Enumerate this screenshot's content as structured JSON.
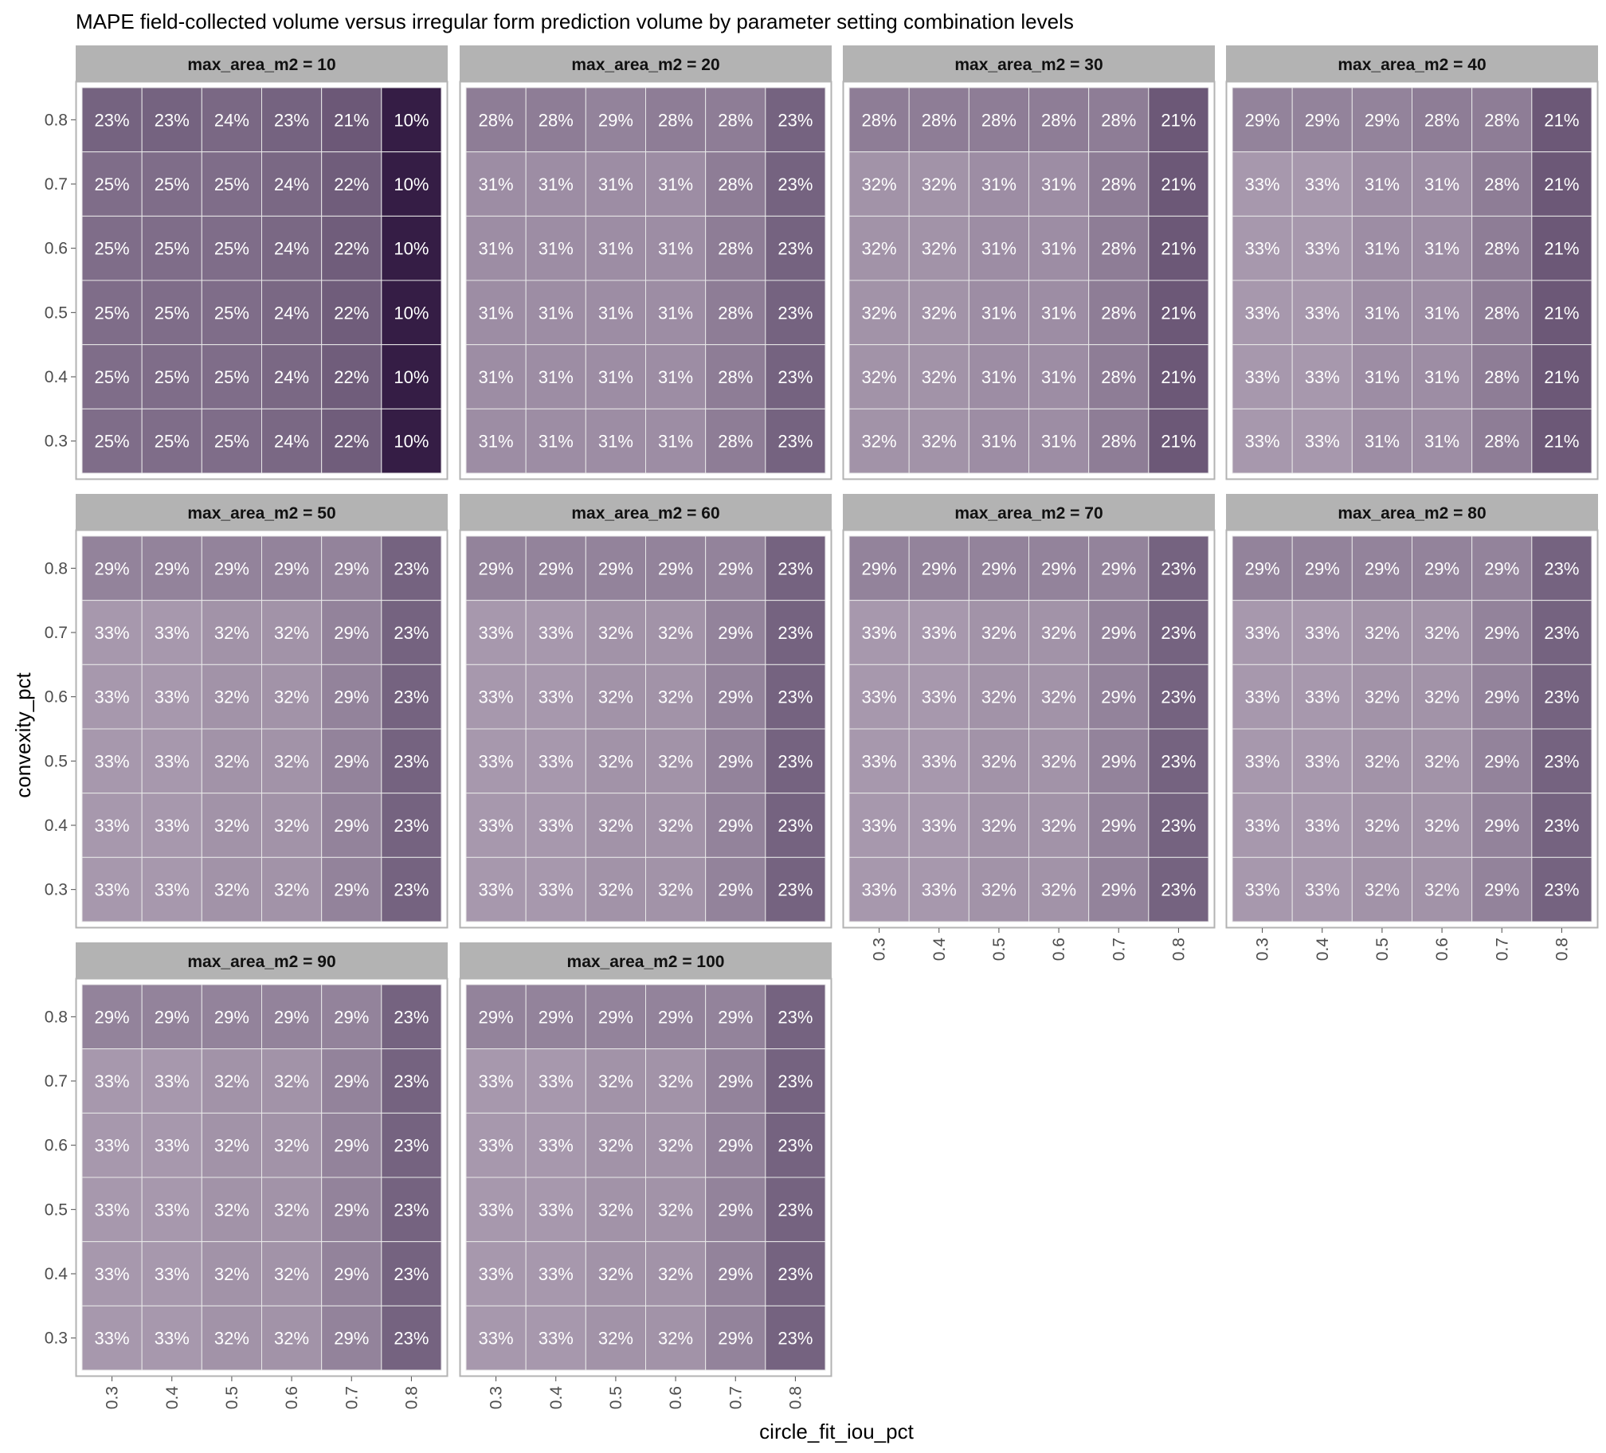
{
  "chart_data": {
    "type": "heatmap",
    "title": "MAPE field-collected volume versus irregular form prediction volume by parameter setting combination levels",
    "xlabel": "circle_fit_iou_pct",
    "ylabel": "convexity_pct",
    "x_categories": [
      "0.3",
      "0.4",
      "0.5",
      "0.6",
      "0.7",
      "0.8"
    ],
    "y_categories": [
      "0.8",
      "0.7",
      "0.6",
      "0.5",
      "0.4",
      "0.3"
    ],
    "value_format": "percent",
    "color_scale": {
      "low": "#351d45",
      "high": "#a798ad",
      "domain": [
        10,
        33
      ]
    },
    "panels": [
      {
        "label": "max_area_m2 = 10",
        "values": [
          [
            23,
            23,
            24,
            23,
            21,
            10
          ],
          [
            25,
            25,
            25,
            24,
            22,
            10
          ],
          [
            25,
            25,
            25,
            24,
            22,
            10
          ],
          [
            25,
            25,
            25,
            24,
            22,
            10
          ],
          [
            25,
            25,
            25,
            24,
            22,
            10
          ],
          [
            25,
            25,
            25,
            24,
            22,
            10
          ]
        ]
      },
      {
        "label": "max_area_m2 = 20",
        "values": [
          [
            28,
            28,
            29,
            28,
            28,
            23
          ],
          [
            31,
            31,
            31,
            31,
            28,
            23
          ],
          [
            31,
            31,
            31,
            31,
            28,
            23
          ],
          [
            31,
            31,
            31,
            31,
            28,
            23
          ],
          [
            31,
            31,
            31,
            31,
            28,
            23
          ],
          [
            31,
            31,
            31,
            31,
            28,
            23
          ]
        ]
      },
      {
        "label": "max_area_m2 = 30",
        "values": [
          [
            28,
            28,
            28,
            28,
            28,
            21
          ],
          [
            32,
            32,
            31,
            31,
            28,
            21
          ],
          [
            32,
            32,
            31,
            31,
            28,
            21
          ],
          [
            32,
            32,
            31,
            31,
            28,
            21
          ],
          [
            32,
            32,
            31,
            31,
            28,
            21
          ],
          [
            32,
            32,
            31,
            31,
            28,
            21
          ]
        ]
      },
      {
        "label": "max_area_m2 = 40",
        "values": [
          [
            29,
            29,
            29,
            28,
            28,
            21
          ],
          [
            33,
            33,
            31,
            31,
            28,
            21
          ],
          [
            33,
            33,
            31,
            31,
            28,
            21
          ],
          [
            33,
            33,
            31,
            31,
            28,
            21
          ],
          [
            33,
            33,
            31,
            31,
            28,
            21
          ],
          [
            33,
            33,
            31,
            31,
            28,
            21
          ]
        ]
      },
      {
        "label": "max_area_m2 = 50",
        "values": [
          [
            29,
            29,
            29,
            29,
            29,
            23
          ],
          [
            33,
            33,
            32,
            32,
            29,
            23
          ],
          [
            33,
            33,
            32,
            32,
            29,
            23
          ],
          [
            33,
            33,
            32,
            32,
            29,
            23
          ],
          [
            33,
            33,
            32,
            32,
            29,
            23
          ],
          [
            33,
            33,
            32,
            32,
            29,
            23
          ]
        ]
      },
      {
        "label": "max_area_m2 = 60",
        "values": [
          [
            29,
            29,
            29,
            29,
            29,
            23
          ],
          [
            33,
            33,
            32,
            32,
            29,
            23
          ],
          [
            33,
            33,
            32,
            32,
            29,
            23
          ],
          [
            33,
            33,
            32,
            32,
            29,
            23
          ],
          [
            33,
            33,
            32,
            32,
            29,
            23
          ],
          [
            33,
            33,
            32,
            32,
            29,
            23
          ]
        ]
      },
      {
        "label": "max_area_m2 = 70",
        "values": [
          [
            29,
            29,
            29,
            29,
            29,
            23
          ],
          [
            33,
            33,
            32,
            32,
            29,
            23
          ],
          [
            33,
            33,
            32,
            32,
            29,
            23
          ],
          [
            33,
            33,
            32,
            32,
            29,
            23
          ],
          [
            33,
            33,
            32,
            32,
            29,
            23
          ],
          [
            33,
            33,
            32,
            32,
            29,
            23
          ]
        ]
      },
      {
        "label": "max_area_m2 = 80",
        "values": [
          [
            29,
            29,
            29,
            29,
            29,
            23
          ],
          [
            33,
            33,
            32,
            32,
            29,
            23
          ],
          [
            33,
            33,
            32,
            32,
            29,
            23
          ],
          [
            33,
            33,
            32,
            32,
            29,
            23
          ],
          [
            33,
            33,
            32,
            32,
            29,
            23
          ],
          [
            33,
            33,
            32,
            32,
            29,
            23
          ]
        ]
      },
      {
        "label": "max_area_m2 = 90",
        "values": [
          [
            29,
            29,
            29,
            29,
            29,
            23
          ],
          [
            33,
            33,
            32,
            32,
            29,
            23
          ],
          [
            33,
            33,
            32,
            32,
            29,
            23
          ],
          [
            33,
            33,
            32,
            32,
            29,
            23
          ],
          [
            33,
            33,
            32,
            32,
            29,
            23
          ],
          [
            33,
            33,
            32,
            32,
            29,
            23
          ]
        ]
      },
      {
        "label": "max_area_m2 = 100",
        "values": [
          [
            29,
            29,
            29,
            29,
            29,
            23
          ],
          [
            33,
            33,
            32,
            32,
            29,
            23
          ],
          [
            33,
            33,
            32,
            32,
            29,
            23
          ],
          [
            33,
            33,
            32,
            32,
            29,
            23
          ],
          [
            33,
            33,
            32,
            32,
            29,
            23
          ],
          [
            33,
            33,
            32,
            32,
            29,
            23
          ]
        ]
      }
    ],
    "grid": false,
    "legend": "none"
  }
}
